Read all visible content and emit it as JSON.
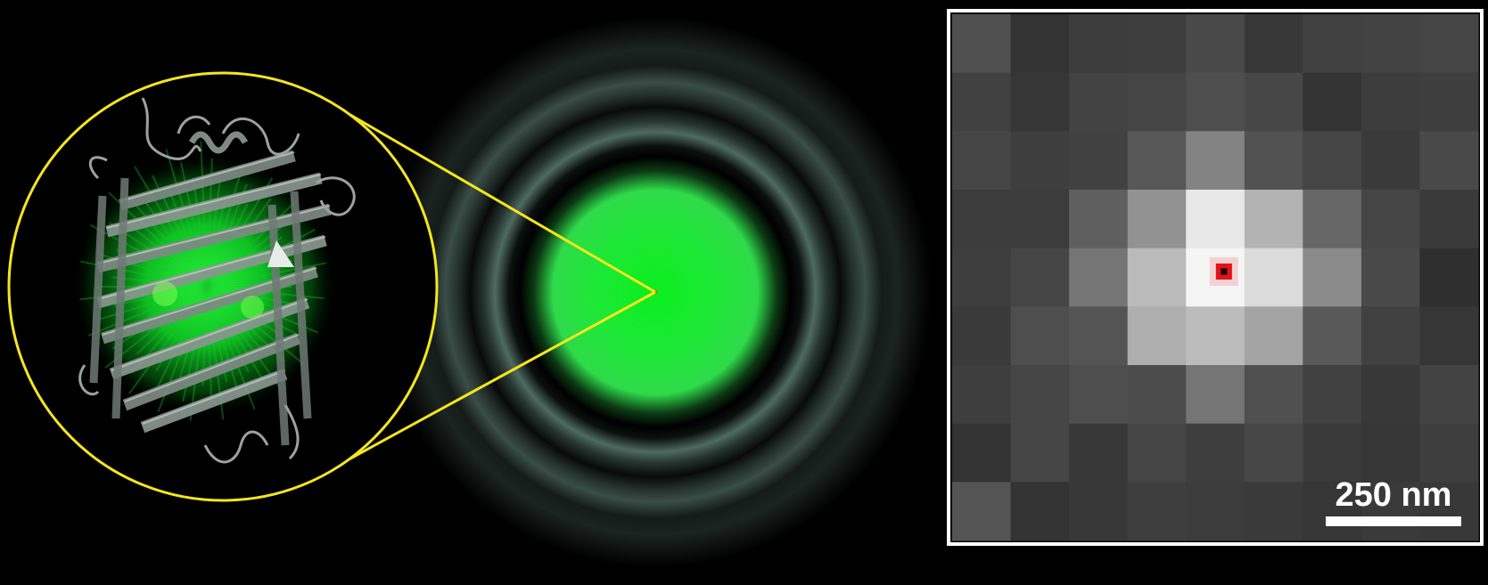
{
  "figure": {
    "protein_panel": {
      "icon": "gfp-barrel-structure",
      "outline_color": "#f5e61e",
      "glow_color": "#00e81a",
      "ribbon_color": "#8a9690"
    },
    "psf_panel": {
      "core_color": "#22e83a",
      "ring_color": "#5f7a72",
      "center_marker_color": "#ff3b1f"
    },
    "pixel_panel": {
      "grid_size": 9,
      "border_color": "#ffffff",
      "localization_color": "#e0121b",
      "intensity": [
        [
          0.25,
          0.12,
          0.16,
          0.17,
          0.22,
          0.14,
          0.18,
          0.19,
          0.2
        ],
        [
          0.18,
          0.13,
          0.19,
          0.2,
          0.24,
          0.21,
          0.12,
          0.16,
          0.17
        ],
        [
          0.2,
          0.17,
          0.18,
          0.28,
          0.48,
          0.26,
          0.2,
          0.15,
          0.22
        ],
        [
          0.16,
          0.16,
          0.32,
          0.55,
          0.94,
          0.7,
          0.35,
          0.2,
          0.15
        ],
        [
          0.17,
          0.2,
          0.42,
          0.73,
          1.0,
          0.88,
          0.52,
          0.22,
          0.1
        ],
        [
          0.15,
          0.24,
          0.27,
          0.68,
          0.74,
          0.63,
          0.29,
          0.18,
          0.13
        ],
        [
          0.17,
          0.2,
          0.24,
          0.23,
          0.42,
          0.25,
          0.18,
          0.14,
          0.19
        ],
        [
          0.12,
          0.2,
          0.14,
          0.2,
          0.17,
          0.21,
          0.15,
          0.13,
          0.17
        ],
        [
          0.27,
          0.12,
          0.14,
          0.17,
          0.16,
          0.15,
          0.13,
          0.15,
          0.14
        ]
      ]
    },
    "scale_bar": {
      "label": "250 nm"
    }
  }
}
